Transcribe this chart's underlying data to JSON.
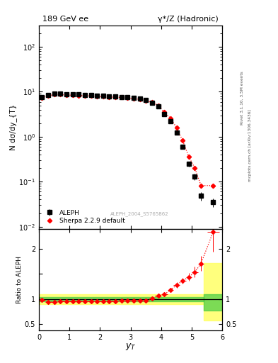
{
  "title_left": "189 GeV ee",
  "title_right": "γ*/Z (Hadronic)",
  "xlabel": "y_{T}",
  "ylabel_main": "N dσ/dy_{T}",
  "ylabel_ratio": "Ratio to ALEPH",
  "watermark": "ALEPH_2004_S5765862",
  "right_label_top": "Rivet 3.1.10, 3.5M events",
  "right_label_bot": "mcplots.cern.ch [arXiv:1306.3436]",
  "aleph_x": [
    0.1,
    0.3,
    0.5,
    0.7,
    0.9,
    1.1,
    1.3,
    1.5,
    1.7,
    1.9,
    2.1,
    2.3,
    2.5,
    2.7,
    2.9,
    3.1,
    3.3,
    3.5,
    3.7,
    3.9,
    4.1,
    4.3,
    4.5,
    4.7,
    4.9,
    5.1,
    5.3,
    5.7
  ],
  "aleph_y": [
    7.5,
    8.6,
    9.2,
    9.1,
    8.9,
    8.8,
    8.7,
    8.6,
    8.5,
    8.3,
    8.2,
    8.0,
    7.9,
    7.7,
    7.5,
    7.3,
    7.0,
    6.6,
    5.7,
    4.7,
    3.2,
    2.2,
    1.25,
    0.6,
    0.25,
    0.13,
    0.048,
    0.035
  ],
  "aleph_yerr_lo": [
    0.2,
    0.2,
    0.2,
    0.2,
    0.15,
    0.15,
    0.15,
    0.15,
    0.15,
    0.15,
    0.15,
    0.15,
    0.15,
    0.15,
    0.15,
    0.15,
    0.15,
    0.15,
    0.15,
    0.2,
    0.15,
    0.12,
    0.08,
    0.05,
    0.03,
    0.02,
    0.01,
    0.008
  ],
  "aleph_yerr_hi": [
    0.2,
    0.2,
    0.2,
    0.2,
    0.15,
    0.15,
    0.15,
    0.15,
    0.15,
    0.15,
    0.15,
    0.15,
    0.15,
    0.15,
    0.15,
    0.15,
    0.15,
    0.15,
    0.15,
    0.2,
    0.15,
    0.12,
    0.08,
    0.05,
    0.03,
    0.02,
    0.01,
    0.008
  ],
  "sherpa_x": [
    0.1,
    0.3,
    0.5,
    0.7,
    0.9,
    1.1,
    1.3,
    1.5,
    1.7,
    1.9,
    2.1,
    2.3,
    2.5,
    2.7,
    2.9,
    3.1,
    3.3,
    3.5,
    3.7,
    3.9,
    4.1,
    4.3,
    4.5,
    4.7,
    4.9,
    5.1,
    5.3,
    5.7
  ],
  "sherpa_y": [
    7.4,
    8.1,
    8.7,
    8.7,
    8.5,
    8.4,
    8.3,
    8.2,
    8.1,
    7.9,
    7.8,
    7.7,
    7.6,
    7.5,
    7.3,
    7.1,
    6.8,
    6.4,
    5.8,
    5.0,
    3.5,
    2.6,
    1.6,
    0.82,
    0.36,
    0.2,
    0.082,
    0.082
  ],
  "ratio_x": [
    0.1,
    0.3,
    0.5,
    0.7,
    0.9,
    1.1,
    1.3,
    1.5,
    1.7,
    1.9,
    2.1,
    2.3,
    2.5,
    2.7,
    2.9,
    3.1,
    3.3,
    3.5,
    3.7,
    3.9,
    4.1,
    4.3,
    4.5,
    4.7,
    4.9,
    5.1,
    5.3,
    5.7
  ],
  "ratio_y": [
    0.987,
    0.942,
    0.945,
    0.957,
    0.955,
    0.955,
    0.954,
    0.953,
    0.953,
    0.952,
    0.951,
    0.963,
    0.962,
    0.974,
    0.973,
    0.973,
    0.971,
    0.97,
    1.018,
    1.064,
    1.094,
    1.182,
    1.28,
    1.367,
    1.44,
    1.54,
    1.708,
    2.34
  ],
  "ratio_xerr": [
    0.1,
    0.1,
    0.1,
    0.1,
    0.1,
    0.1,
    0.1,
    0.1,
    0.1,
    0.1,
    0.1,
    0.1,
    0.1,
    0.1,
    0.1,
    0.1,
    0.1,
    0.1,
    0.1,
    0.1,
    0.1,
    0.1,
    0.1,
    0.1,
    0.1,
    0.1,
    0.1,
    0.2
  ],
  "ratio_yerr": [
    0.015,
    0.015,
    0.015,
    0.015,
    0.012,
    0.012,
    0.012,
    0.012,
    0.012,
    0.012,
    0.012,
    0.012,
    0.012,
    0.012,
    0.012,
    0.012,
    0.012,
    0.012,
    0.018,
    0.025,
    0.035,
    0.04,
    0.05,
    0.06,
    0.08,
    0.1,
    0.15,
    0.4
  ],
  "green_band_y1": 0.96,
  "green_band_y2": 1.04,
  "yellow_band_y1": 0.9,
  "yellow_band_y2": 1.1,
  "main_x_end": 5.4,
  "last_bin_x1": 5.4,
  "last_bin_x2": 6.0,
  "yellow_last_y1": 0.57,
  "yellow_last_y2": 1.72,
  "green_last_y1": 0.77,
  "green_last_y2": 1.1,
  "xlim": [
    0,
    6
  ],
  "ylim_main": [
    0.009,
    300
  ],
  "ylim_ratio": [
    0.38,
    2.4
  ],
  "aleph_color": "#000000",
  "sherpa_color": "#ff0000",
  "bg_color": "#ffffff"
}
